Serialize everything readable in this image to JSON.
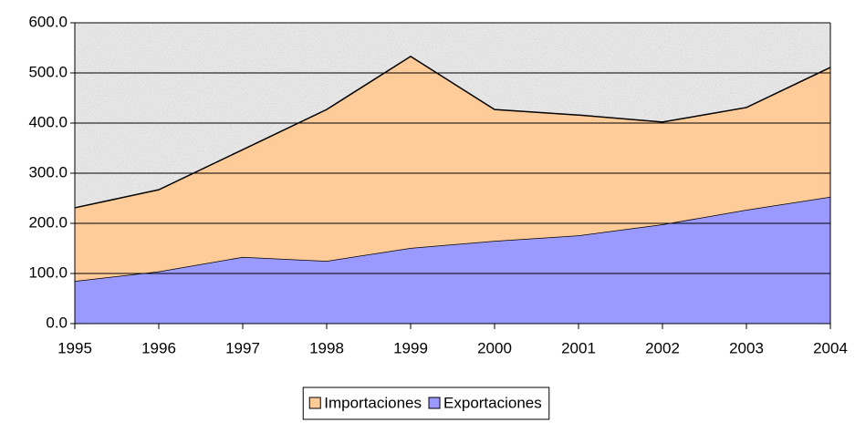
{
  "chart_data": {
    "type": "stacked-area",
    "categories": [
      "1995",
      "1996",
      "1997",
      "1998",
      "1999",
      "2000",
      "2001",
      "2002",
      "2003",
      "2004"
    ],
    "series": [
      {
        "name": "Importaciones",
        "color": "#ffcc99",
        "values": [
          146,
          163,
          214,
          302,
          382,
          262,
          240,
          204,
          204,
          258
        ]
      },
      {
        "name": "Exportaciones",
        "color": "#9999ff",
        "values": [
          85,
          104,
          133,
          125,
          151,
          165,
          176,
          198,
          227,
          253
        ]
      }
    ],
    "ylim": [
      0,
      600
    ],
    "yticks": [
      {
        "value": 0,
        "label": "0.0"
      },
      {
        "value": 100,
        "label": "100.0"
      },
      {
        "value": 200,
        "label": "200.0"
      },
      {
        "value": 300,
        "label": "300.0"
      },
      {
        "value": 400,
        "label": "400.0"
      },
      {
        "value": 500,
        "label": "500.0"
      },
      {
        "value": 600,
        "label": "600.0"
      }
    ],
    "grid": true,
    "legend": "bottom"
  }
}
